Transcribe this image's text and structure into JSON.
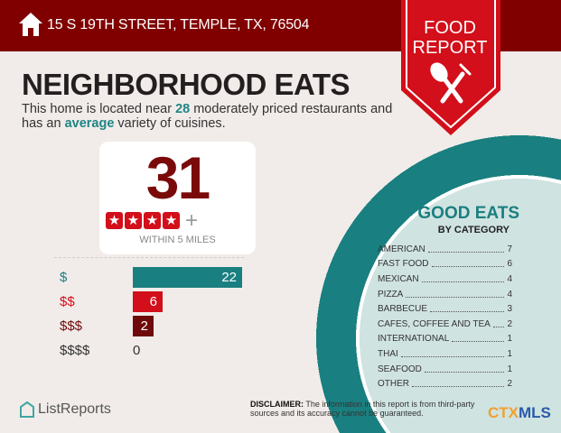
{
  "header": {
    "address": "15 S 19TH STREET, TEMPLE, TX, 76504",
    "icon": "home-icon"
  },
  "ribbon": {
    "line1": "FOOD",
    "line2": "REPORT",
    "icon": "spoon-fork-icon"
  },
  "title": "NEIGHBORHOOD EATS",
  "description": {
    "pre": "This home is located near ",
    "count": "28",
    "mid": " moderately priced restaurants and has an ",
    "variety": "average",
    "post": " variety of cuisines."
  },
  "summary": {
    "total": "31",
    "stars": 4,
    "plus": "+",
    "within": "WITHIN 5 MILES"
  },
  "price_levels": [
    {
      "label": "$",
      "value": 22,
      "color": "#1a7f80"
    },
    {
      "label": "$$",
      "value": 6,
      "color": "#d20f1a"
    },
    {
      "label": "$$$",
      "value": 2,
      "color": "#6e0a0a"
    },
    {
      "label": "$$$$",
      "value": 0,
      "color": "#333333"
    }
  ],
  "good_eats": {
    "title": "GOOD EATS",
    "subtitle": "BY CATEGORY",
    "categories": [
      {
        "name": "AMERICAN",
        "count": "7"
      },
      {
        "name": "FAST FOOD",
        "count": "6"
      },
      {
        "name": "MEXICAN",
        "count": "4"
      },
      {
        "name": "PIZZA",
        "count": "4"
      },
      {
        "name": "BARBECUE",
        "count": "3"
      },
      {
        "name": "CAFES, COFFEE AND TEA",
        "count": "2"
      },
      {
        "name": "INTERNATIONAL",
        "count": "1"
      },
      {
        "name": "THAI",
        "count": "1"
      },
      {
        "name": "SEAFOOD",
        "count": "1"
      },
      {
        "name": "OTHER",
        "count": "2"
      }
    ]
  },
  "footer": {
    "brand": "ListReports",
    "disclaimer_label": "DISCLAIMER:",
    "disclaimer": " The information in this report is from third-party sources and its accuracy cannot be guaranteed.",
    "mls_a": "CTX",
    "mls_b": "MLS"
  },
  "colors": {
    "header": "#800000",
    "accent_red": "#d20f1a",
    "teal": "#1a7f80"
  }
}
